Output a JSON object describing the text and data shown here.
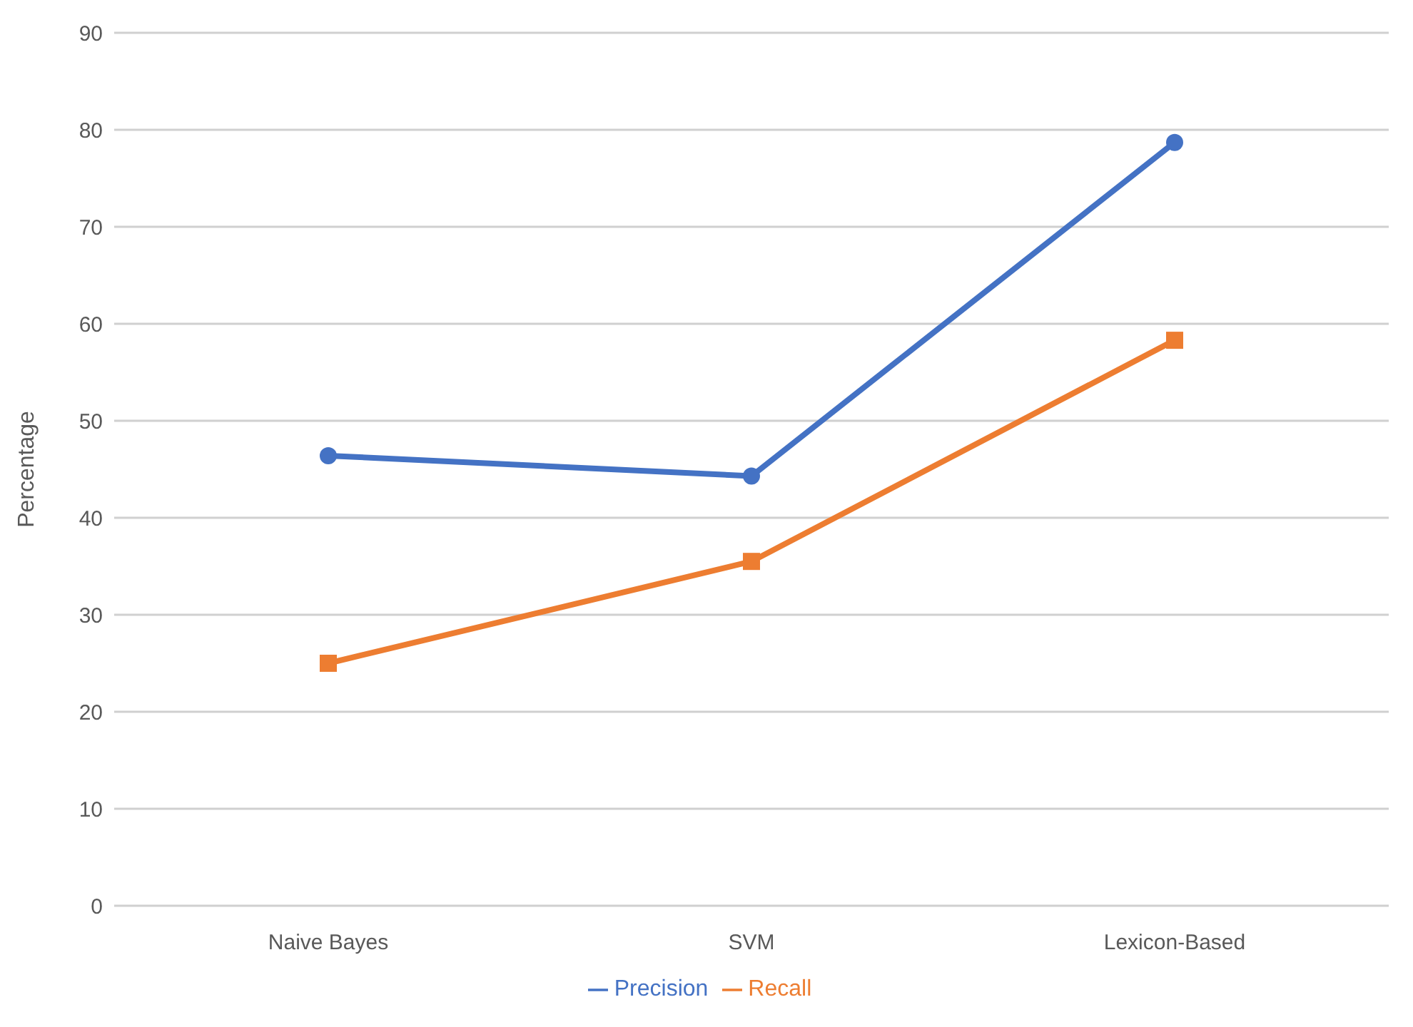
{
  "chart_data": {
    "type": "line",
    "ylabel": "Percentage",
    "categories": [
      "Naive Bayes",
      "SVM",
      "Lexicon-Based"
    ],
    "series": [
      {
        "name": "Precision",
        "color": "#4472c4",
        "values": [
          46.4,
          44.3,
          78.7
        ],
        "marker": "circle"
      },
      {
        "name": "Recall",
        "color": "#ed7d31",
        "values": [
          25.0,
          35.5,
          58.3
        ],
        "marker": "square"
      }
    ],
    "ylim": [
      0,
      90
    ],
    "yticks": [
      0,
      10,
      20,
      30,
      40,
      50,
      60,
      70,
      80,
      90
    ],
    "grid": "y",
    "legend": "bottom",
    "line_style": "solid"
  }
}
